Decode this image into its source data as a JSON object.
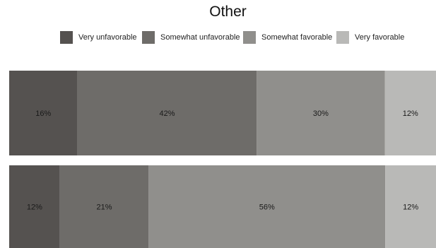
{
  "chart_data": {
    "type": "bar",
    "orientation": "horizontal",
    "stacked": true,
    "title": "Other",
    "legend_position": "top",
    "colors": [
      "#555250",
      "#6e6c69",
      "#908f8c",
      "#b9b9b7"
    ],
    "series": [
      {
        "name": "Very unfavorable",
        "values": [
          16,
          12
        ],
        "labels": [
          "16%",
          "12%"
        ]
      },
      {
        "name": "Somewhat unfavorable",
        "values": [
          42,
          21
        ],
        "labels": [
          "42%",
          "21%"
        ]
      },
      {
        "name": "Somewhat favorable",
        "values": [
          30,
          56
        ],
        "labels": [
          "30%",
          "56%"
        ]
      },
      {
        "name": "Very favorable",
        "values": [
          12,
          12
        ],
        "labels": [
          "12%",
          "12%"
        ]
      }
    ]
  }
}
